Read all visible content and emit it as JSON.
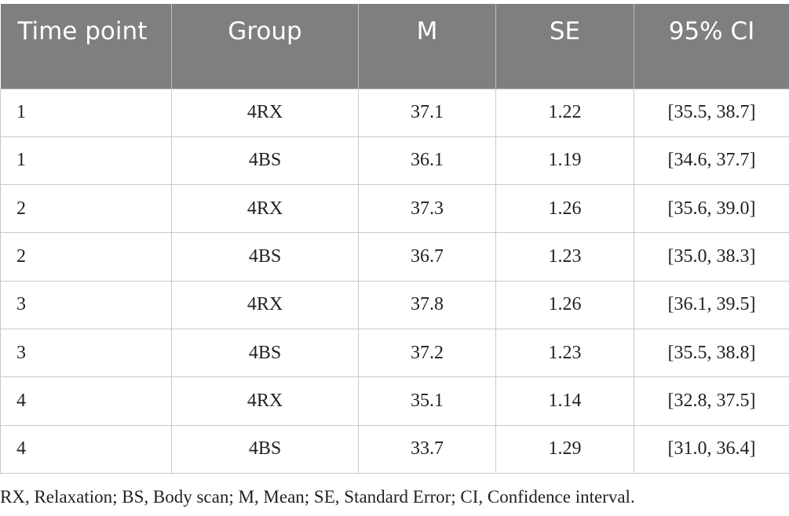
{
  "table": {
    "headers": [
      "Time point",
      "Group",
      "M",
      "SE",
      "95% CI"
    ],
    "rows": [
      [
        "1",
        "4RX",
        "37.1",
        "1.22",
        "[35.5, 38.7]"
      ],
      [
        "1",
        "4BS",
        "36.1",
        "1.19",
        "[34.6, 37.7]"
      ],
      [
        "2",
        "4RX",
        "37.3",
        "1.26",
        "[35.6, 39.0]"
      ],
      [
        "2",
        "4BS",
        "36.7",
        "1.23",
        "[35.0, 38.3]"
      ],
      [
        "3",
        "4RX",
        "37.8",
        "1.26",
        "[36.1, 39.5]"
      ],
      [
        "3",
        "4BS",
        "37.2",
        "1.23",
        "[35.5, 38.8]"
      ],
      [
        "4",
        "4RX",
        "35.1",
        "1.14",
        "[32.8, 37.5]"
      ],
      [
        "4",
        "4BS",
        "33.7",
        "1.29",
        "[31.0, 36.4]"
      ]
    ]
  },
  "footnote": "RX, Relaxation; BS, Body scan; M, Mean; SE, Standard Error; CI, Confidence interval.",
  "colors": {
    "header_background": "#7f7f7f",
    "header_text": "#ffffff",
    "grid_line": "#c8c8c8"
  }
}
